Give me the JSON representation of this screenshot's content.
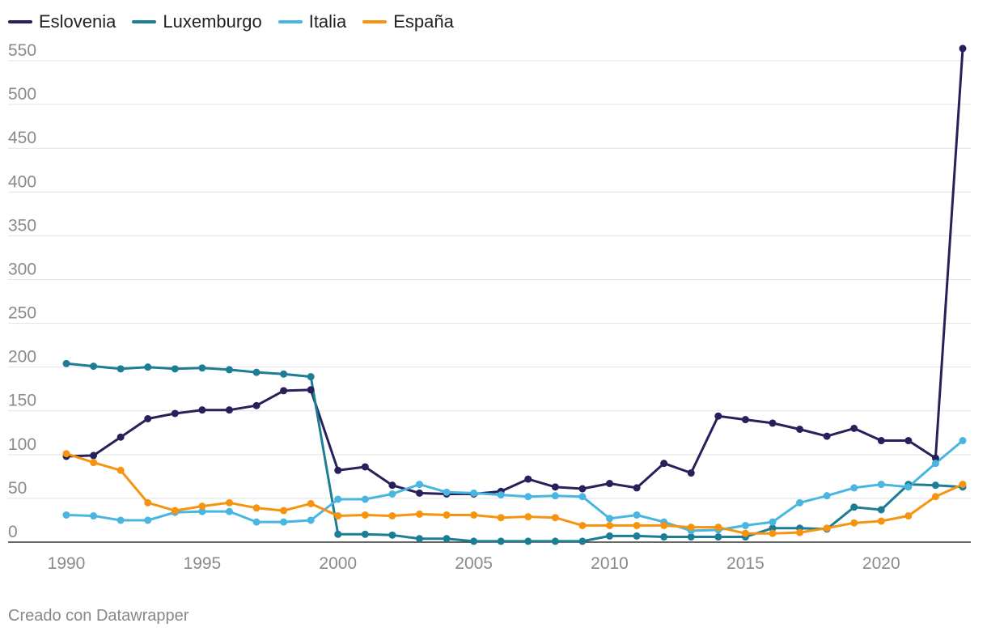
{
  "credit": "Creado con Datawrapper",
  "chart_data": {
    "type": "line",
    "title": "",
    "xlabel": "",
    "ylabel": "",
    "xlim": [
      1990,
      2023
    ],
    "ylim": [
      0,
      575
    ],
    "x_ticks": [
      1990,
      1995,
      2000,
      2005,
      2010,
      2015,
      2020
    ],
    "y_ticks": [
      0,
      50,
      100,
      150,
      200,
      250,
      300,
      350,
      400,
      450,
      500,
      550
    ],
    "grid": "horizontal",
    "legend_position": "top-left",
    "x": [
      1990,
      1991,
      1992,
      1993,
      1994,
      1995,
      1996,
      1997,
      1998,
      1999,
      2000,
      2001,
      2002,
      2003,
      2004,
      2005,
      2006,
      2007,
      2008,
      2009,
      2010,
      2011,
      2012,
      2013,
      2014,
      2015,
      2016,
      2017,
      2018,
      2019,
      2020,
      2021,
      2022,
      2023
    ],
    "series": [
      {
        "name": "Eslovenia",
        "color": "#27215b",
        "values": [
          98,
          99,
          120,
          141,
          147,
          151,
          151,
          156,
          173,
          174,
          82,
          86,
          65,
          56,
          55,
          55,
          58,
          72,
          63,
          61,
          67,
          62,
          90,
          79,
          144,
          140,
          136,
          129,
          121,
          130,
          116,
          116,
          96,
          564
        ]
      },
      {
        "name": "Luxemburgo",
        "color": "#1c7d95",
        "values": [
          204,
          201,
          198,
          200,
          198,
          199,
          197,
          194,
          192,
          189,
          9,
          9,
          8,
          4,
          4,
          1,
          1,
          1,
          1,
          1,
          7,
          7,
          6,
          6,
          6,
          6,
          16,
          16,
          15,
          40,
          37,
          66,
          65,
          63
        ]
      },
      {
        "name": "Italia",
        "color": "#48b6e0",
        "values": [
          31,
          30,
          25,
          25,
          34,
          35,
          35,
          23,
          23,
          25,
          49,
          49,
          55,
          66,
          57,
          56,
          54,
          52,
          53,
          52,
          27,
          31,
          23,
          13,
          14,
          19,
          23,
          45,
          53,
          62,
          66,
          63,
          90,
          116
        ]
      },
      {
        "name": "España",
        "color": "#f6930f",
        "values": [
          101,
          91,
          82,
          45,
          36,
          41,
          45,
          39,
          36,
          44,
          30,
          31,
          30,
          32,
          31,
          31,
          28,
          29,
          28,
          19,
          19,
          19,
          19,
          17,
          17,
          10,
          10,
          11,
          16,
          22,
          24,
          30,
          52,
          66
        ]
      }
    ]
  }
}
